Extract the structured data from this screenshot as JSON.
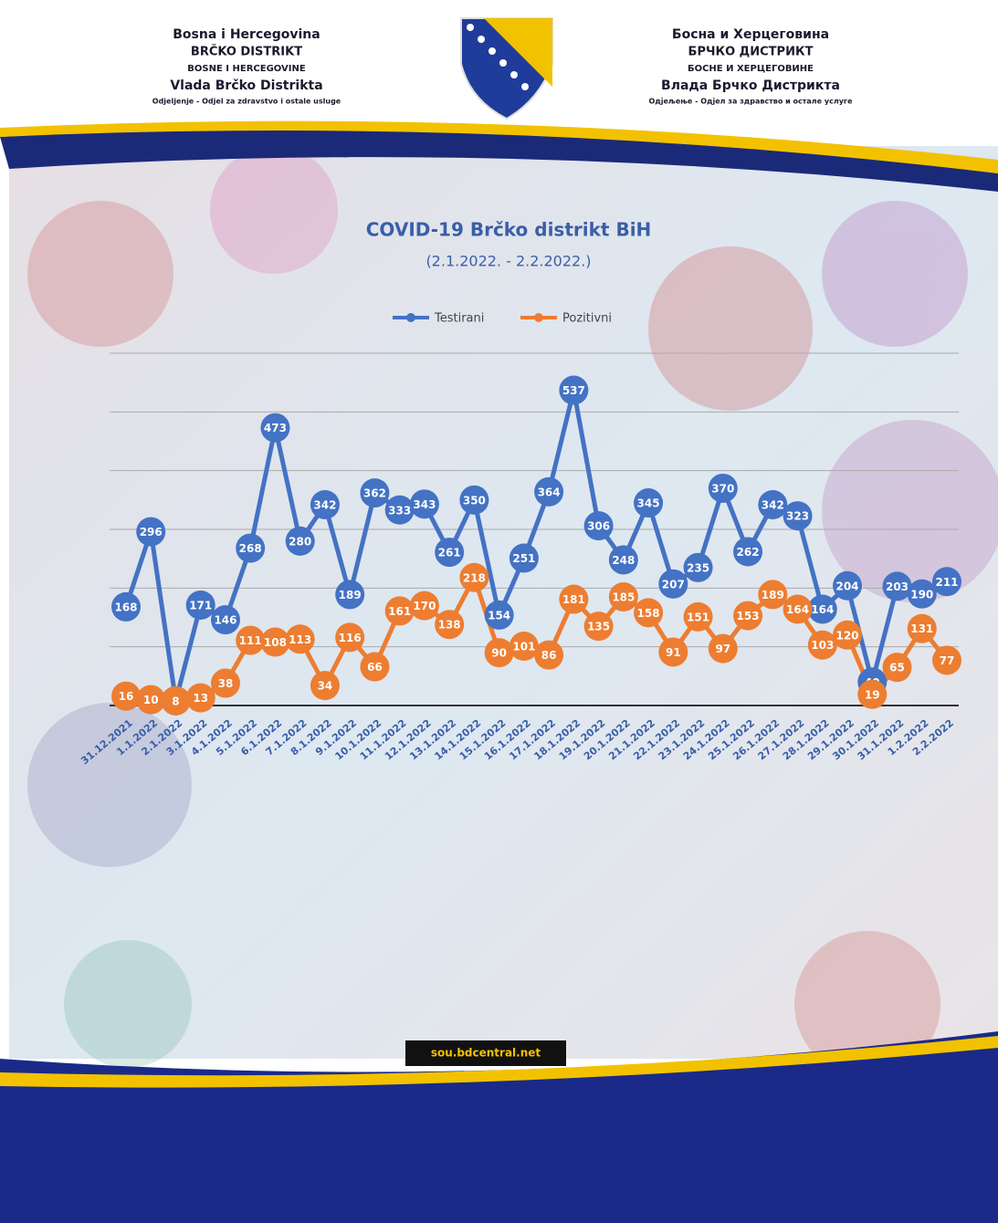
{
  "header": {
    "left": [
      "Bosna i Hercegovina",
      "BRČKO DISTRIKT",
      "BOSNE I HERCEGOVINE",
      "Vlada Brčko Distrikta",
      "Odjeljenje - Odjel za zdravstvo i ostale usluge"
    ],
    "right": [
      "Босна и Херцеговина",
      "БРЧКО ДИСТРИКТ",
      "БОСНЕ И ХЕРЦЕГОВИНЕ",
      "Влада Брчко Дистрикта",
      "Одјељење - Одјел за здравство и остале услуге"
    ]
  },
  "chart_data": {
    "type": "line",
    "title": "COVID-19 Brčko distrikt BiH",
    "subtitle": "(2.1.2022. - 2.2.2022.)",
    "categories": [
      "31.12.2021",
      "1.1.2022",
      "2.1.2022",
      "3.1.2022",
      "4.1.2022",
      "5.1.2022",
      "6.1.2022",
      "7.1.2022",
      "8.1.2022",
      "9.1.2022",
      "10.1.2022",
      "11.1.2022",
      "12.1.2022",
      "13.1.2022",
      "14.1.2022",
      "15.1.2022",
      "16.1.2022",
      "17.1.2022",
      "18.1.2022",
      "19.1.2022",
      "20.1.2022",
      "21.1.2022",
      "22.1.2022",
      "23.1.2022",
      "24.1.2022",
      "25.1.2022",
      "26.1.2022",
      "27.1.2022",
      "28.1.2022",
      "29.1.2022",
      "30.1.2022",
      "31.1.2022",
      "1.2.2022",
      "2.2.2022"
    ],
    "series": [
      {
        "name": "Testirani",
        "color": "#4472c4",
        "values": [
          168,
          296,
          8,
          171,
          146,
          268,
          473,
          280,
          342,
          189,
          362,
          333,
          343,
          261,
          350,
          154,
          251,
          364,
          537,
          306,
          248,
          345,
          207,
          235,
          370,
          262,
          342,
          323,
          164,
          204,
          40,
          203,
          190,
          211
        ]
      },
      {
        "name": "Pozitivni",
        "color": "#ed7d31",
        "values": [
          16,
          10,
          8,
          13,
          38,
          111,
          108,
          113,
          34,
          116,
          66,
          161,
          170,
          138,
          218,
          90,
          101,
          86,
          181,
          135,
          185,
          158,
          91,
          151,
          97,
          153,
          189,
          164,
          103,
          120,
          19,
          65,
          131,
          77
        ]
      }
    ],
    "ylim": [
      0,
      600
    ],
    "yticks": [
      0,
      100,
      200,
      300,
      400,
      500,
      600
    ],
    "grid": true,
    "legend": "top"
  },
  "footer": {
    "url": "sou.bdcentral.net"
  }
}
